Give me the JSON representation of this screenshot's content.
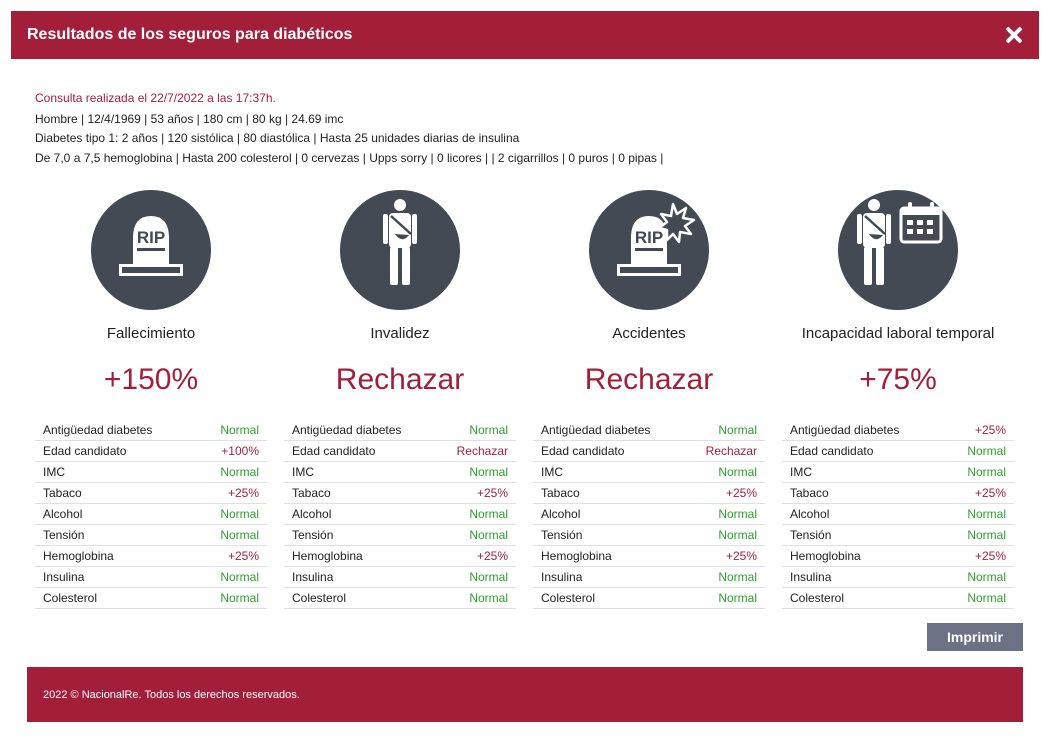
{
  "header": {
    "title": "Resultados de los seguros para diabéticos"
  },
  "info": {
    "consulta": "Consulta realizada el 22/7/2022 a las 17:37h.",
    "line1": "Hombre | 12/4/1969 | 53 años | 180 cm | 80 kg | 24.69 imc",
    "line2": "Diabetes tipo 1: 2 años | 120 sistólica | 80 diastólica | Hasta 25 unidades diarias de insulina",
    "line3": "De 7,0 a 7,5 hemoglobina | Hasta 200 colesterol | 0 cervezas | Upps sorry | 0 licores | | 2 cigarrillos | 0 puros | 0 pipas |"
  },
  "columns": [
    {
      "icon": "tombstone-icon",
      "title": "Fallecimiento",
      "result": "+150%",
      "rows": [
        {
          "label": "Antigüedad diabetes",
          "value": "Normal"
        },
        {
          "label": "Edad candidato",
          "value": "+100%"
        },
        {
          "label": "IMC",
          "value": "Normal"
        },
        {
          "label": "Tabaco",
          "value": "+25%"
        },
        {
          "label": "Alcohol",
          "value": "Normal"
        },
        {
          "label": "Tensión",
          "value": "Normal"
        },
        {
          "label": "Hemoglobina",
          "value": "+25%"
        },
        {
          "label": "Insulina",
          "value": "Normal"
        },
        {
          "label": "Colesterol",
          "value": "Normal"
        }
      ]
    },
    {
      "icon": "injured-person-icon",
      "title": "Invalidez",
      "result": "Rechazar",
      "rows": [
        {
          "label": "Antigüedad diabetes",
          "value": "Normal"
        },
        {
          "label": "Edad candidato",
          "value": "Rechazar"
        },
        {
          "label": "IMC",
          "value": "Normal"
        },
        {
          "label": "Tabaco",
          "value": "+25%"
        },
        {
          "label": "Alcohol",
          "value": "Normal"
        },
        {
          "label": "Tensión",
          "value": "Normal"
        },
        {
          "label": "Hemoglobina",
          "value": "+25%"
        },
        {
          "label": "Insulina",
          "value": "Normal"
        },
        {
          "label": "Colesterol",
          "value": "Normal"
        }
      ]
    },
    {
      "icon": "tombstone-crash-icon",
      "title": "Accidentes",
      "result": "Rechazar",
      "rows": [
        {
          "label": "Antigüedad diabetes",
          "value": "Normal"
        },
        {
          "label": "Edad candidato",
          "value": "Rechazar"
        },
        {
          "label": "IMC",
          "value": "Normal"
        },
        {
          "label": "Tabaco",
          "value": "+25%"
        },
        {
          "label": "Alcohol",
          "value": "Normal"
        },
        {
          "label": "Tensión",
          "value": "Normal"
        },
        {
          "label": "Hemoglobina",
          "value": "+25%"
        },
        {
          "label": "Insulina",
          "value": "Normal"
        },
        {
          "label": "Colesterol",
          "value": "Normal"
        }
      ]
    },
    {
      "icon": "injured-person-calendar-icon",
      "title": "Incapacidad laboral temporal",
      "result": "+75%",
      "rows": [
        {
          "label": "Antigüedad diabetes",
          "value": "+25%"
        },
        {
          "label": "Edad candidato",
          "value": "Normal"
        },
        {
          "label": "IMC",
          "value": "Normal"
        },
        {
          "label": "Tabaco",
          "value": "+25%"
        },
        {
          "label": "Alcohol",
          "value": "Normal"
        },
        {
          "label": "Tensión",
          "value": "Normal"
        },
        {
          "label": "Hemoglobina",
          "value": "+25%"
        },
        {
          "label": "Insulina",
          "value": "Normal"
        },
        {
          "label": "Colesterol",
          "value": "Normal"
        }
      ]
    }
  ],
  "rip_text": "RIP",
  "print_button": "Imprimir",
  "footer": {
    "text": "2022 © NacionalRe. Todos los derechos reservados."
  },
  "colors": {
    "brand": "#a31f39",
    "icon_bg": "#434a53",
    "ok": "#2e9e2e",
    "bad": "#a31f39",
    "button": "#6c7185"
  }
}
